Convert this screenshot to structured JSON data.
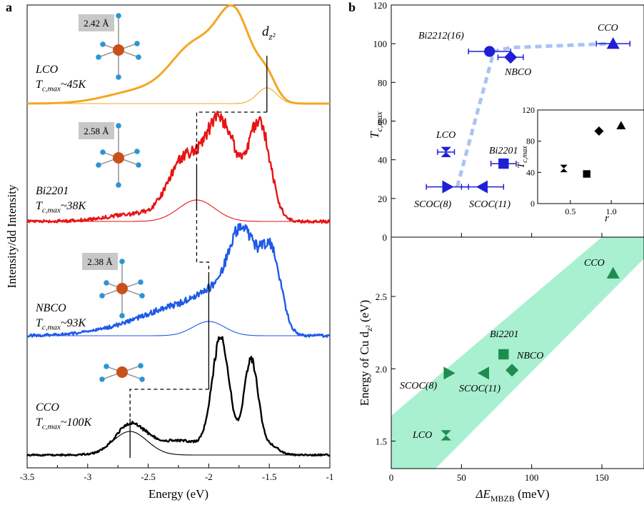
{
  "panel_a": {
    "label": "a",
    "xlabel": "Energy (eV)",
    "ylabel": "Intensity/dd Intensity",
    "peak_label": "d",
    "peak_label_sub": "z²",
    "materials": [
      "LCO",
      "Bi2201",
      "NBCO",
      "CCO"
    ],
    "tc_texts": [
      "T",
      "T",
      "T",
      "T"
    ],
    "tc_sub": "c,max",
    "tc_values": [
      "~45K",
      "~38K",
      "~93K",
      "~100K"
    ],
    "bond_lengths": [
      "2.42 Å",
      "2.58 Å",
      "2.38 Å"
    ],
    "colors": [
      "#f5a623",
      "#e81414",
      "#1f5ae8",
      "#000000"
    ]
  },
  "panel_b": {
    "label": "b",
    "top_ylabel": "T",
    "top_ylabel_sub": "c,max",
    "bottom_ylabel": "Energy of Cu d",
    "bottom_ylabel_sub": "z²",
    "bottom_ylabel_tail": " (eV)",
    "xlabel": "ΔE",
    "xlabel_sub": "MBZB",
    "xlabel_tail": " (meV)",
    "inset_ylabel": "T",
    "inset_ylabel_sub": "c,max",
    "inset_xlabel": "r",
    "point_labels": [
      "Bi2212(16)",
      "CCO",
      "NBCO",
      "LCO",
      "Bi2201",
      "SCOC(8)",
      "SCOC(11)"
    ],
    "bottom_point_labels": [
      "CCO",
      "Bi2201",
      "NBCO",
      "SCOC(8)",
      "SCOC(11)",
      "LCO"
    ],
    "colors": {
      "blue": "#1f1fd6",
      "green": "#1e8c4e",
      "band": "#a8f0d0",
      "trend": "#a9c4f2"
    }
  },
  "chart_data": [
    {
      "type": "line",
      "title": "",
      "xlabel": "Energy (eV)",
      "ylabel": "Intensity/dd Intensity",
      "xlim": [
        -3.5,
        -1.0
      ],
      "xticks": [
        "-3.5",
        "-3",
        "-2.5",
        "-2",
        "-1.5",
        "-1"
      ],
      "series": [
        {
          "name": "LCO",
          "peak_dz2_eV": -1.52,
          "main_peaks_eV": [
            -2.1,
            -1.78
          ]
        },
        {
          "name": "Bi2201",
          "peak_dz2_eV": -2.1,
          "main_peaks_eV": [
            -1.88,
            -1.57
          ]
        },
        {
          "name": "NBCO",
          "peak_dz2_eV": -2.0,
          "main_peaks_eV": [
            -1.72,
            -1.49
          ]
        },
        {
          "name": "CCO",
          "peak_dz2_eV": -2.65,
          "main_peaks_eV": [
            -1.9,
            -1.65
          ]
        }
      ]
    },
    {
      "type": "scatter",
      "xlabel": "",
      "ylabel": "Tc,max",
      "xlim": [
        0,
        180
      ],
      "ylim": [
        0,
        120
      ],
      "yticks": [
        0,
        20,
        40,
        60,
        80,
        100,
        120
      ],
      "points": [
        {
          "label": "CCO",
          "x": 158,
          "y": 100,
          "xerr": 12
        },
        {
          "label": "Bi2212(16)",
          "x": 70,
          "y": 96,
          "xerr": 15
        },
        {
          "label": "NBCO",
          "x": 85,
          "y": 93,
          "xerr": 9
        },
        {
          "label": "LCO",
          "x": 39,
          "y": 44,
          "xerr": 6
        },
        {
          "label": "Bi2201",
          "x": 80,
          "y": 38,
          "xerr": 9
        },
        {
          "label": "SCOC(8)",
          "x": 40,
          "y": 26,
          "xerr": 15
        },
        {
          "label": "SCOC(11)",
          "x": 65,
          "y": 26,
          "xerr": 15
        }
      ],
      "trend": [
        [
          47,
          26
        ],
        [
          73,
          96
        ],
        [
          85,
          98
        ],
        [
          155,
          100
        ]
      ]
    },
    {
      "type": "scatter",
      "xlabel": "r",
      "ylabel": "Tc,max",
      "xlim": [
        0.1,
        1.4
      ],
      "ylim": [
        0,
        120
      ],
      "xticks": [
        0.5,
        1.0
      ],
      "yticks": [
        0,
        40,
        80,
        120
      ],
      "points": [
        {
          "x": 0.42,
          "y": 45
        },
        {
          "x": 0.7,
          "y": 38
        },
        {
          "x": 0.85,
          "y": 93
        },
        {
          "x": 1.12,
          "y": 100
        }
      ]
    },
    {
      "type": "scatter",
      "xlabel": "ΔE MBZB (meV)",
      "ylabel": "Energy of Cu dz² (eV)",
      "xlim": [
        0,
        180
      ],
      "ylim": [
        1.31,
        2.91
      ],
      "xticks": [
        0,
        50,
        100,
        150
      ],
      "yticks": [
        1.5,
        2.0,
        2.5
      ],
      "points": [
        {
          "label": "CCO",
          "x": 158,
          "y": 2.66
        },
        {
          "label": "Bi2201",
          "x": 80,
          "y": 2.1
        },
        {
          "label": "NBCO",
          "x": 86,
          "y": 1.99
        },
        {
          "label": "SCOC(8)",
          "x": 41,
          "y": 1.97
        },
        {
          "label": "SCOC(11)",
          "x": 66,
          "y": 1.97
        },
        {
          "label": "LCO",
          "x": 39,
          "y": 1.54
        }
      ],
      "band": "diagonal shaded region"
    }
  ]
}
